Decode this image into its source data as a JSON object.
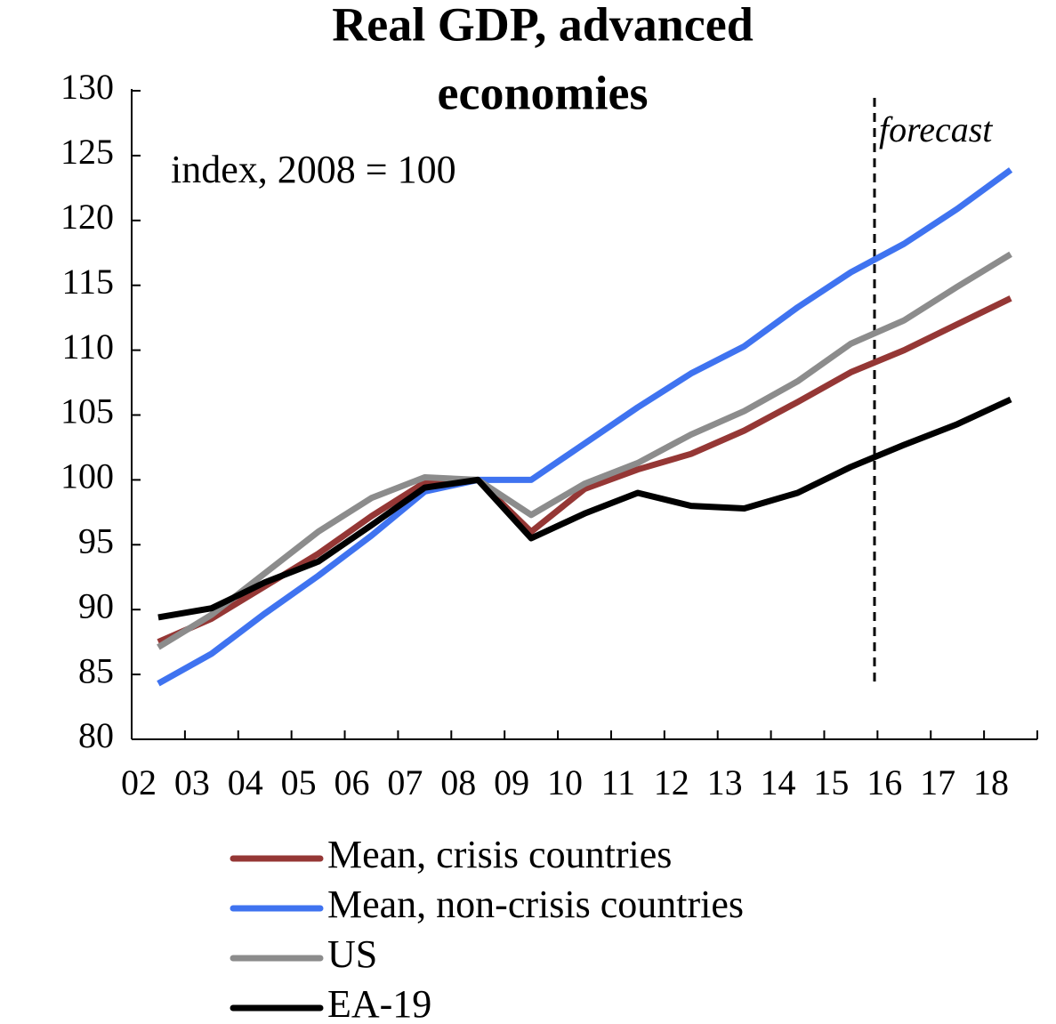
{
  "chart_data": {
    "type": "line",
    "title": [
      "Real GDP, advanced",
      "economies"
    ],
    "subtitle": "index, 2008 = 100",
    "annotation": "forecast",
    "categories": [
      "02",
      "03",
      "04",
      "05",
      "06",
      "07",
      "08",
      "09",
      "10",
      "11",
      "12",
      "13",
      "14",
      "15",
      "16",
      "17",
      "18"
    ],
    "series": [
      {
        "name": "Mean, crisis countries",
        "color": "#953735",
        "values": [
          87.5,
          89.3,
          91.8,
          94.3,
          97.2,
          99.8,
          100,
          96,
          99.3,
          100.8,
          102,
          103.8,
          106,
          108.3,
          110,
          112,
          114
        ]
      },
      {
        "name": "Mean, non-crisis countries",
        "color": "#3f73f0",
        "values": [
          84.3,
          86.6,
          89.7,
          92.6,
          95.7,
          99.1,
          100,
          100,
          102.8,
          105.6,
          108.2,
          110.3,
          113.3,
          116,
          118.2,
          120.9,
          123.9
        ]
      },
      {
        "name": "US",
        "color": "#8c8c8c",
        "values": [
          87.1,
          89.6,
          92.8,
          96,
          98.6,
          100.2,
          100,
          97.3,
          99.7,
          101.3,
          103.5,
          105.3,
          107.6,
          110.5,
          112.3,
          114.9,
          117.4
        ]
      },
      {
        "name": "EA-19",
        "color": "#000000",
        "values": [
          89.4,
          90.1,
          92.1,
          93.7,
          96.5,
          99.4,
          100,
          95.5,
          97.4,
          99,
          98,
          97.8,
          99,
          101,
          102.7,
          104.3,
          106.2
        ]
      }
    ],
    "ylim": [
      80,
      130
    ],
    "yticks": [
      80,
      85,
      90,
      95,
      100,
      105,
      110,
      115,
      120,
      125,
      130
    ]
  }
}
